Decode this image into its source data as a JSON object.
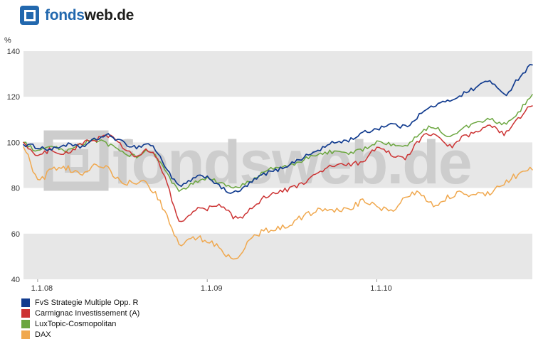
{
  "header": {
    "brand_primary": "fonds",
    "brand_secondary": "web.de"
  },
  "chart_data": {
    "type": "line",
    "title": "",
    "ylabel": "%",
    "ylim": [
      40,
      140
    ],
    "yticks": [
      40,
      60,
      80,
      100,
      120,
      140
    ],
    "months_total": 36,
    "xticks": [
      {
        "label": "1.1.08",
        "month": 1
      },
      {
        "label": "1.1.09",
        "month": 13
      },
      {
        "label": "1.1.10",
        "month": 25
      }
    ],
    "watermark": "fondsweb.de",
    "band_colors": [
      "#e7e7e7",
      "#ffffff"
    ],
    "axis_text_color": "#333333",
    "watermark_color": "#cdcdcd",
    "series": [
      {
        "name": "FvS Strategie Multiple Opp. R",
        "color": "#123c8f",
        "values": [
          99,
          98,
          97,
          99,
          98,
          101,
          103,
          100,
          98,
          99,
          90,
          81,
          84,
          85,
          80,
          78,
          82,
          86,
          88,
          91,
          94,
          97,
          100,
          101,
          104,
          106,
          108,
          107,
          112,
          116,
          118,
          121,
          124,
          127,
          121,
          128,
          134
        ]
      },
      {
        "name": "Carmignac Investissement (A)",
        "color": "#cc3333",
        "values": [
          100,
          94,
          97,
          95,
          99,
          101,
          103,
          98,
          94,
          96,
          85,
          66,
          70,
          71,
          72,
          67,
          70,
          76,
          78,
          80,
          83,
          87,
          90,
          90,
          92,
          97,
          95,
          93,
          101,
          104,
          98,
          102,
          104,
          107,
          104,
          110,
          116
        ]
      },
      {
        "name": "LuxTopic-Cosmopolitan",
        "color": "#6ba63f",
        "values": [
          100,
          96,
          98,
          96,
          99,
          101,
          99,
          96,
          94,
          96,
          88,
          79,
          82,
          84,
          82,
          80,
          83,
          87,
          89,
          90,
          93,
          95,
          96,
          95,
          97,
          100,
          99,
          98,
          104,
          107,
          103,
          106,
          108,
          110,
          108,
          113,
          121
        ]
      },
      {
        "name": "DAX",
        "color": "#f0a84e",
        "values": [
          98,
          84,
          88,
          89,
          86,
          90,
          88,
          82,
          83,
          80,
          70,
          56,
          58,
          57,
          53,
          48,
          57,
          61,
          62,
          65,
          68,
          71,
          70,
          71,
          74,
          72,
          70,
          76,
          78,
          73,
          76,
          78,
          77,
          78,
          82,
          86,
          88
        ]
      }
    ]
  }
}
